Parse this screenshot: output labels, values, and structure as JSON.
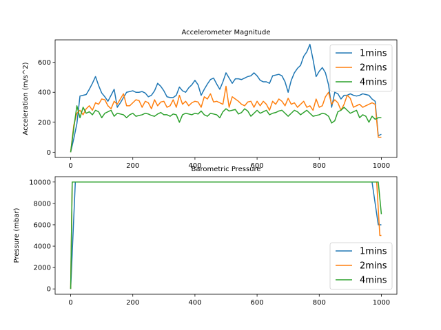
{
  "chart_data": [
    {
      "type": "line",
      "title": "Accelerometer Magnitude",
      "xlabel": "",
      "ylabel": "Acceleration (m/s^2)",
      "xlim": [
        -50,
        1050
      ],
      "ylim": [
        -35,
        750
      ],
      "xticks": [
        0,
        200,
        400,
        600,
        800,
        1000
      ],
      "yticks": [
        0,
        200,
        400,
        600
      ],
      "legend_position": "top-right",
      "series": [
        {
          "name": "1mins",
          "color": "#1f77b4",
          "x": [
            0,
            10,
            20,
            30,
            40,
            50,
            60,
            70,
            80,
            90,
            100,
            110,
            120,
            130,
            140,
            150,
            160,
            170,
            180,
            190,
            200,
            210,
            220,
            230,
            240,
            250,
            260,
            270,
            280,
            290,
            300,
            310,
            320,
            330,
            340,
            350,
            360,
            370,
            380,
            390,
            400,
            410,
            420,
            430,
            440,
            450,
            460,
            470,
            480,
            490,
            500,
            510,
            520,
            530,
            540,
            550,
            560,
            570,
            580,
            590,
            600,
            610,
            620,
            630,
            640,
            650,
            660,
            670,
            680,
            690,
            700,
            710,
            720,
            730,
            740,
            750,
            760,
            770,
            780,
            790,
            800,
            810,
            820,
            830,
            840,
            850,
            860,
            870,
            880,
            890,
            900,
            910,
            920,
            930,
            940,
            950,
            960,
            970,
            980,
            990,
            1000
          ],
          "y": [
            0,
            90,
            190,
            375,
            380,
            385,
            420,
            460,
            505,
            445,
            395,
            370,
            340,
            380,
            420,
            300,
            330,
            365,
            400,
            405,
            410,
            400,
            400,
            405,
            395,
            370,
            380,
            410,
            460,
            440,
            410,
            370,
            365,
            365,
            380,
            435,
            410,
            400,
            430,
            450,
            480,
            450,
            380,
            420,
            455,
            485,
            495,
            455,
            420,
            470,
            530,
            495,
            460,
            490,
            490,
            485,
            495,
            505,
            510,
            530,
            510,
            480,
            470,
            470,
            460,
            510,
            515,
            520,
            510,
            470,
            400,
            480,
            530,
            560,
            580,
            640,
            670,
            720,
            620,
            505,
            540,
            565,
            530,
            450,
            300,
            400,
            390,
            355,
            380,
            380,
            390,
            380,
            375,
            380,
            390,
            385,
            380,
            355,
            340,
            110,
            120
          ]
        },
        {
          "name": "2mins",
          "color": "#ff7f0e",
          "x": [
            0,
            10,
            20,
            30,
            40,
            50,
            60,
            70,
            80,
            90,
            100,
            110,
            120,
            130,
            140,
            150,
            160,
            170,
            180,
            190,
            200,
            210,
            220,
            230,
            240,
            250,
            260,
            270,
            280,
            290,
            300,
            310,
            320,
            330,
            340,
            350,
            360,
            370,
            380,
            390,
            400,
            410,
            420,
            430,
            440,
            450,
            460,
            470,
            480,
            490,
            500,
            510,
            520,
            530,
            540,
            550,
            560,
            570,
            580,
            590,
            600,
            610,
            620,
            630,
            640,
            650,
            660,
            670,
            680,
            690,
            700,
            710,
            720,
            730,
            740,
            750,
            760,
            770,
            780,
            790,
            800,
            810,
            820,
            830,
            840,
            850,
            860,
            870,
            880,
            890,
            900,
            910,
            920,
            930,
            940,
            950,
            960,
            970,
            980,
            990,
            1000
          ],
          "y": [
            0,
            180,
            260,
            280,
            250,
            290,
            310,
            280,
            330,
            320,
            355,
            350,
            310,
            290,
            340,
            320,
            355,
            390,
            310,
            310,
            330,
            350,
            345,
            300,
            340,
            330,
            290,
            350,
            310,
            335,
            340,
            300,
            310,
            350,
            300,
            380,
            320,
            340,
            310,
            330,
            340,
            335,
            300,
            370,
            355,
            390,
            335,
            340,
            330,
            320,
            440,
            300,
            370,
            355,
            340,
            320,
            310,
            335,
            340,
            300,
            340,
            310,
            340,
            320,
            280,
            340,
            320,
            355,
            340,
            310,
            360,
            320,
            330,
            300,
            320,
            340,
            300,
            310,
            280,
            355,
            300,
            310,
            370,
            400,
            320,
            350,
            330,
            280,
            320,
            380,
            360,
            300,
            310,
            320,
            300,
            310,
            320,
            330,
            320,
            100,
            100
          ]
        },
        {
          "name": "4mins",
          "color": "#2ca02c",
          "x": [
            0,
            10,
            20,
            30,
            40,
            50,
            60,
            70,
            80,
            90,
            100,
            110,
            120,
            130,
            140,
            150,
            160,
            170,
            180,
            190,
            200,
            210,
            220,
            230,
            240,
            250,
            260,
            270,
            280,
            290,
            300,
            310,
            320,
            330,
            340,
            350,
            360,
            370,
            380,
            390,
            400,
            410,
            420,
            430,
            440,
            450,
            460,
            470,
            480,
            490,
            500,
            510,
            520,
            530,
            540,
            550,
            560,
            570,
            580,
            590,
            600,
            610,
            620,
            630,
            640,
            650,
            660,
            670,
            680,
            690,
            700,
            710,
            720,
            730,
            740,
            750,
            760,
            770,
            780,
            790,
            800,
            810,
            820,
            830,
            840,
            850,
            860,
            870,
            880,
            890,
            900,
            910,
            920,
            930,
            940,
            950,
            960,
            970,
            980,
            990,
            1000
          ],
          "y": [
            0,
            160,
            310,
            230,
            300,
            260,
            270,
            250,
            280,
            270,
            230,
            260,
            270,
            280,
            240,
            260,
            255,
            250,
            230,
            250,
            260,
            240,
            245,
            250,
            260,
            255,
            245,
            240,
            255,
            265,
            250,
            250,
            240,
            255,
            250,
            200,
            250,
            260,
            255,
            250,
            260,
            255,
            275,
            250,
            240,
            260,
            255,
            250,
            230,
            270,
            290,
            275,
            280,
            285,
            255,
            265,
            290,
            275,
            240,
            260,
            280,
            260,
            270,
            280,
            250,
            260,
            265,
            275,
            280,
            260,
            240,
            260,
            280,
            270,
            250,
            265,
            280,
            260,
            240,
            245,
            250,
            260,
            255,
            240,
            195,
            210,
            270,
            280,
            300,
            280,
            260,
            270,
            280,
            230,
            250,
            240,
            200,
            240,
            220,
            230,
            230
          ]
        }
      ]
    },
    {
      "type": "line",
      "title": "Barometric Pressure",
      "xlabel": "",
      "ylabel": "Pressure (mbar)",
      "xlim": [
        -50,
        1050
      ],
      "ylim": [
        -500,
        10500
      ],
      "xticks": [
        0,
        200,
        400,
        600,
        800,
        1000
      ],
      "yticks": [
        0,
        2000,
        4000,
        6000,
        8000,
        10000
      ],
      "legend_position": "bottom-right",
      "series": [
        {
          "name": "1mins",
          "color": "#1f77b4",
          "x": [
            0,
            15,
            970,
            990,
            1000
          ],
          "y": [
            0,
            10000,
            10000,
            6000,
            6000
          ]
        },
        {
          "name": "2mins",
          "color": "#ff7f0e",
          "x": [
            0,
            5,
            985,
            995,
            1000
          ],
          "y": [
            0,
            10000,
            10000,
            5000,
            5000
          ]
        },
        {
          "name": "4mins",
          "color": "#2ca02c",
          "x": [
            0,
            5,
            990,
            1000
          ],
          "y": [
            0,
            10000,
            10000,
            7000
          ]
        }
      ]
    }
  ]
}
